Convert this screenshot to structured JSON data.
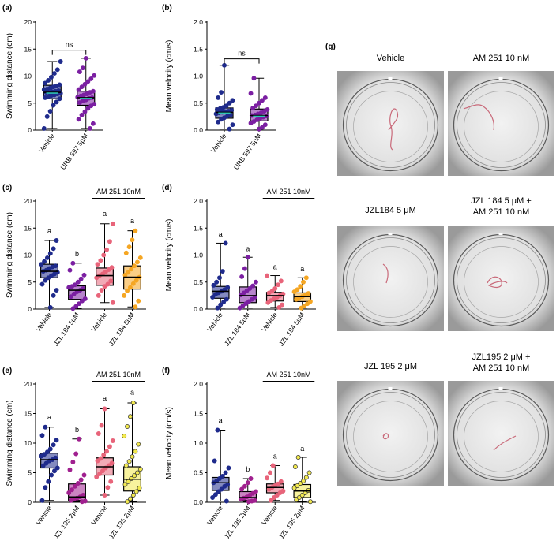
{
  "chart_data": [
    {
      "id": "a",
      "panel_label": "(a)",
      "type": "box",
      "ylabel": "Swimming distance (cm)",
      "ylim": [
        0,
        20
      ],
      "yticks": [
        0,
        5,
        10,
        15,
        20
      ],
      "categories": [
        "Vehicle",
        "URB 597 5μM"
      ],
      "colors": [
        "#1f2b8c",
        "#7b1fa2"
      ],
      "mean_color": "#2ec4b6",
      "boxes": [
        {
          "min": 0.3,
          "q1": 5.8,
          "median": 7.0,
          "q3": 8.3,
          "max": 12.7,
          "points": [
            0.3,
            2.5,
            3.5,
            4.6,
            5.2,
            5.8,
            6.0,
            6.2,
            6.4,
            6.5,
            6.7,
            6.8,
            7.0,
            7.0,
            7.1,
            7.2,
            7.3,
            7.5,
            7.6,
            7.8,
            8.0,
            8.2,
            8.4,
            8.7,
            9.2,
            9.8,
            10.5,
            11.2,
            12.7
          ]
        },
        {
          "min": 0.3,
          "q1": 4.6,
          "median": 6.0,
          "q3": 7.2,
          "max": 13.3,
          "points": [
            0.3,
            1.2,
            2.0,
            2.8,
            3.4,
            4.0,
            4.5,
            4.8,
            5.1,
            5.4,
            5.6,
            5.9,
            6.0,
            6.1,
            6.3,
            6.5,
            6.7,
            7.0,
            7.2,
            7.5,
            8.0,
            8.5,
            9.0,
            9.5,
            10.1,
            10.8,
            11.5,
            13.3
          ]
        }
      ],
      "comparison": {
        "text": "ns",
        "from": 0,
        "to": 1,
        "y": 14.8
      },
      "letters": [],
      "group_bar": null
    },
    {
      "id": "b",
      "panel_label": "(b)",
      "type": "box",
      "ylabel": "Mean velocity (cm/s)",
      "ylim": [
        0,
        2.0
      ],
      "yticks": [
        0.0,
        0.5,
        1.0,
        1.5,
        2.0
      ],
      "categories": [
        "Vehicle",
        "URB 597 5μM"
      ],
      "colors": [
        "#1f2b8c",
        "#7b1fa2"
      ],
      "mean_color": "#2ec4b6",
      "boxes": [
        {
          "min": 0.02,
          "q1": 0.22,
          "median": 0.33,
          "q3": 0.41,
          "max": 1.2,
          "points": [
            0.02,
            0.1,
            0.15,
            0.2,
            0.23,
            0.26,
            0.28,
            0.3,
            0.32,
            0.33,
            0.34,
            0.35,
            0.37,
            0.38,
            0.4,
            0.42,
            0.45,
            0.5,
            0.55,
            0.6,
            0.7,
            1.2
          ]
        },
        {
          "min": 0.02,
          "q1": 0.17,
          "median": 0.27,
          "q3": 0.39,
          "max": 0.96,
          "points": [
            0.02,
            0.05,
            0.1,
            0.13,
            0.16,
            0.19,
            0.22,
            0.24,
            0.26,
            0.27,
            0.28,
            0.3,
            0.32,
            0.35,
            0.38,
            0.41,
            0.45,
            0.5,
            0.55,
            0.6,
            0.68,
            0.96
          ]
        }
      ],
      "comparison": {
        "text": "ns",
        "from": 0,
        "to": 1,
        "y": 1.32
      },
      "letters": [],
      "group_bar": null
    },
    {
      "id": "c",
      "panel_label": "(c)",
      "type": "box",
      "ylabel": "Swimming distance (cm)",
      "ylim": [
        0,
        20
      ],
      "yticks": [
        0,
        5,
        10,
        15,
        20
      ],
      "categories": [
        "Vehicle",
        "JZL 184 5μM",
        "Vehicle",
        "JZL 184 5μM"
      ],
      "colors": [
        "#1f2b8c",
        "#7b1fa2",
        "#e8647a",
        "#f5a623"
      ],
      "boxes": [
        {
          "min": 0.3,
          "q1": 5.8,
          "median": 7.0,
          "q3": 8.3,
          "max": 12.7,
          "points": [
            0.3,
            2.5,
            3.5,
            4.6,
            5.3,
            5.8,
            6.2,
            6.5,
            6.8,
            7.0,
            7.2,
            7.5,
            7.8,
            8.0,
            8.3,
            8.8,
            9.5,
            10.3,
            11.2,
            12.7
          ]
        },
        {
          "min": 0.1,
          "q1": 1.8,
          "median": 3.5,
          "q3": 4.3,
          "max": 8.5,
          "points": [
            0.1,
            0.5,
            1.0,
            1.5,
            1.9,
            2.3,
            2.8,
            3.2,
            3.5,
            3.8,
            4.0,
            4.2,
            4.5,
            5.0,
            5.6,
            6.3,
            7.2,
            8.5
          ]
        },
        {
          "min": 1.2,
          "q1": 4.4,
          "median": 6.2,
          "q3": 7.6,
          "max": 15.8,
          "points": [
            1.2,
            2.5,
            3.5,
            4.2,
            4.6,
            5.2,
            5.8,
            6.2,
            6.5,
            6.9,
            7.3,
            7.7,
            8.3,
            9.0,
            10.0,
            11.0,
            12.5,
            15.8
          ]
        },
        {
          "min": 0.4,
          "q1": 3.7,
          "median": 5.9,
          "q3": 8.0,
          "max": 14.5,
          "points": [
            0.4,
            1.5,
            2.5,
            3.4,
            4.0,
            4.7,
            5.3,
            5.9,
            6.3,
            6.8,
            7.4,
            8.0,
            8.7,
            9.5,
            10.4,
            11.5,
            12.8,
            14.5
          ]
        }
      ],
      "comparison": null,
      "letters": [
        {
          "text": "a",
          "group": 0,
          "y": 14.0
        },
        {
          "text": "b",
          "group": 1,
          "y": 9.8
        },
        {
          "text": "a",
          "group": 2,
          "y": 17.2
        },
        {
          "text": "a",
          "group": 3,
          "y": 15.9
        }
      ],
      "group_bar": {
        "text": "AM 251 10nM",
        "from": 2,
        "to": 3
      }
    },
    {
      "id": "d",
      "panel_label": "(d)",
      "type": "box",
      "ylabel": "Mean velocity (cm/s)",
      "ylim": [
        0,
        2.0
      ],
      "yticks": [
        0.0,
        0.5,
        1.0,
        1.5,
        2.0
      ],
      "categories": [
        "Vehicle",
        "JZL 184 5μM",
        "Vehicle",
        "JZL 184 5μM"
      ],
      "colors": [
        "#1f2b8c",
        "#7b1fa2",
        "#e8647a",
        "#f5a623"
      ],
      "boxes": [
        {
          "min": 0.02,
          "q1": 0.2,
          "median": 0.33,
          "q3": 0.42,
          "max": 1.22,
          "points": [
            0.02,
            0.08,
            0.13,
            0.18,
            0.22,
            0.27,
            0.3,
            0.33,
            0.36,
            0.4,
            0.44,
            0.5,
            0.58,
            0.7,
            1.22
          ]
        },
        {
          "min": 0.02,
          "q1": 0.12,
          "median": 0.25,
          "q3": 0.41,
          "max": 0.96,
          "points": [
            0.02,
            0.06,
            0.1,
            0.14,
            0.18,
            0.22,
            0.26,
            0.3,
            0.34,
            0.38,
            0.43,
            0.5,
            0.6,
            0.75,
            0.96
          ]
        },
        {
          "min": 0.03,
          "q1": 0.15,
          "median": 0.25,
          "q3": 0.31,
          "max": 0.62,
          "points": [
            0.03,
            0.08,
            0.12,
            0.16,
            0.19,
            0.22,
            0.25,
            0.28,
            0.3,
            0.33,
            0.38,
            0.45,
            0.52,
            0.62
          ]
        },
        {
          "min": 0.02,
          "q1": 0.14,
          "median": 0.23,
          "q3": 0.3,
          "max": 0.58,
          "points": [
            0.02,
            0.06,
            0.1,
            0.14,
            0.18,
            0.21,
            0.23,
            0.26,
            0.29,
            0.32,
            0.36,
            0.42,
            0.5,
            0.58
          ]
        }
      ],
      "comparison": null,
      "letters": [
        {
          "text": "a",
          "group": 0,
          "y": 1.34
        },
        {
          "text": "a",
          "group": 1,
          "y": 1.07
        },
        {
          "text": "a",
          "group": 2,
          "y": 0.74
        },
        {
          "text": "a",
          "group": 3,
          "y": 0.7
        }
      ],
      "group_bar": {
        "text": "AM 251 10nM",
        "from": 2,
        "to": 3
      }
    },
    {
      "id": "e",
      "panel_label": "(e)",
      "type": "box",
      "ylabel": "Swimming distance (cm)",
      "ylim": [
        0,
        20
      ],
      "yticks": [
        0,
        5,
        10,
        15,
        20
      ],
      "categories": [
        "Vehicle",
        "JZL 195 2μM",
        "Vehicle",
        "JZL 195 2μM"
      ],
      "colors": [
        "#1f2b8c",
        "#a0208f",
        "#e8647a",
        "#f2e94e"
      ],
      "boxes": [
        {
          "min": 0.3,
          "q1": 5.8,
          "median": 7.2,
          "q3": 8.3,
          "max": 12.7,
          "points": [
            0.3,
            2.5,
            3.5,
            4.6,
            5.3,
            5.8,
            6.2,
            6.6,
            7.0,
            7.2,
            7.5,
            7.8,
            8.1,
            8.5,
            9.0,
            9.7,
            10.5,
            11.3,
            12.7
          ]
        },
        {
          "min": 0.1,
          "q1": 0.3,
          "median": 0.9,
          "q3": 3.1,
          "max": 10.7,
          "points": [
            0.1,
            0.2,
            0.3,
            0.5,
            0.7,
            0.9,
            1.2,
            1.6,
            2.1,
            2.7,
            3.2,
            3.8,
            4.6,
            5.5,
            6.8,
            8.2,
            10.7
          ]
        },
        {
          "min": 1.2,
          "q1": 4.6,
          "median": 6.0,
          "q3": 7.5,
          "max": 15.8,
          "points": [
            1.2,
            2.5,
            3.5,
            4.3,
            4.8,
            5.3,
            5.8,
            6.2,
            6.6,
            7.0,
            7.4,
            8.0,
            8.6,
            9.4,
            10.4,
            11.6,
            13.0,
            15.8
          ]
        },
        {
          "min": 0.1,
          "q1": 1.9,
          "median": 3.9,
          "q3": 6.0,
          "max": 16.8,
          "points": [
            0.1,
            0.6,
            1.2,
            1.8,
            2.4,
            3.0,
            3.5,
            4.0,
            4.5,
            5.0,
            5.6,
            6.2,
            6.9,
            7.7,
            8.6,
            9.8,
            11.2,
            12.8,
            14.5,
            16.8
          ]
        }
      ],
      "comparison": null,
      "letters": [
        {
          "text": "a",
          "group": 0,
          "y": 14.0
        },
        {
          "text": "b",
          "group": 1,
          "y": 11.9
        },
        {
          "text": "a",
          "group": 2,
          "y": 17.2
        },
        {
          "text": "a",
          "group": 3,
          "y": 18.2
        }
      ],
      "group_bar": {
        "text": "AM 251 10nM",
        "from": 2,
        "to": 3
      }
    },
    {
      "id": "f",
      "panel_label": "(f)",
      "type": "box",
      "ylabel": "Mean velocity (cm/s)",
      "ylim": [
        0,
        2.0
      ],
      "yticks": [
        0.0,
        0.5,
        1.0,
        1.5,
        2.0
      ],
      "categories": [
        "Vehicle",
        "JZL 195 2μM",
        "Vehicle",
        "JZL 195 2μM"
      ],
      "colors": [
        "#1f2b8c",
        "#a0208f",
        "#e8647a",
        "#f2e94e"
      ],
      "boxes": [
        {
          "min": 0.02,
          "q1": 0.2,
          "median": 0.33,
          "q3": 0.42,
          "max": 1.22,
          "points": [
            0.02,
            0.08,
            0.13,
            0.18,
            0.22,
            0.27,
            0.3,
            0.33,
            0.36,
            0.4,
            0.44,
            0.5,
            0.58,
            0.7,
            1.22
          ]
        },
        {
          "min": 0.01,
          "q1": 0.03,
          "median": 0.08,
          "q3": 0.18,
          "max": 0.4,
          "points": [
            0.01,
            0.02,
            0.03,
            0.05,
            0.07,
            0.09,
            0.12,
            0.15,
            0.18,
            0.22,
            0.27,
            0.33,
            0.4
          ]
        },
        {
          "min": 0.03,
          "q1": 0.16,
          "median": 0.25,
          "q3": 0.31,
          "max": 0.62,
          "points": [
            0.03,
            0.08,
            0.12,
            0.16,
            0.19,
            0.22,
            0.25,
            0.28,
            0.31,
            0.35,
            0.41,
            0.5,
            0.62
          ]
        },
        {
          "min": 0.01,
          "q1": 0.08,
          "median": 0.19,
          "q3": 0.3,
          "max": 0.76,
          "points": [
            0.01,
            0.04,
            0.08,
            0.12,
            0.16,
            0.2,
            0.24,
            0.28,
            0.32,
            0.36,
            0.42,
            0.5,
            0.6,
            0.76
          ]
        }
      ],
      "comparison": null,
      "letters": [
        {
          "text": "a",
          "group": 0,
          "y": 1.34
        },
        {
          "text": "b",
          "group": 1,
          "y": 0.52
        },
        {
          "text": "a",
          "group": 2,
          "y": 0.74
        },
        {
          "text": "a",
          "group": 3,
          "y": 0.87
        }
      ],
      "group_bar": {
        "text": "AM 251 10nM",
        "from": 2,
        "to": 3
      }
    }
  ],
  "figure_g": {
    "panel_label": "(g)",
    "images": [
      {
        "title_lines": [
          "Vehicle"
        ]
      },
      {
        "title_lines": [
          "AM 251 10 nM"
        ]
      },
      {
        "title_lines": [
          "JZL184 5 μM"
        ]
      },
      {
        "title_lines": [
          "JZL 184 5 μM +",
          "AM 251 10 nM"
        ]
      },
      {
        "title_lines": [
          "JZL 195 2 μM"
        ]
      },
      {
        "title_lines": [
          "JZL195 2 μM +",
          "AM 251 10 nM"
        ]
      }
    ],
    "trail_color": "#c96a7a"
  }
}
